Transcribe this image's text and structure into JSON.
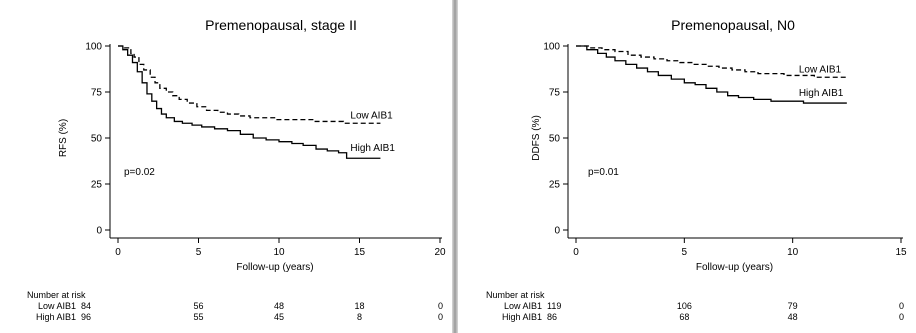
{
  "chart_data": [
    {
      "type": "line",
      "title": "Premenopausal, stage II",
      "xlabel": "Follow-up (years)",
      "ylabel": "RFS (%)",
      "xlim": [
        0,
        20
      ],
      "ylim": [
        0,
        100
      ],
      "xticks": [
        0,
        5,
        10,
        15,
        20
      ],
      "yticks": [
        0,
        25,
        50,
        75,
        100
      ],
      "annotation": "p=0.02",
      "series": [
        {
          "name": "Low AIB1",
          "style": "dashed",
          "x": [
            0,
            0.4,
            0.8,
            1.0,
            1.3,
            1.6,
            2.0,
            2.3,
            2.6,
            3.0,
            3.4,
            3.8,
            4.3,
            4.9,
            5.5,
            6.2,
            6.8,
            7.5,
            8.2,
            9.0,
            9.8,
            10.6,
            11.4,
            12.2,
            13.0,
            14.0,
            15.0,
            16.3
          ],
          "y": [
            100,
            99,
            96,
            94,
            90,
            87,
            83,
            80,
            77,
            75,
            73,
            71,
            69,
            67,
            65,
            64,
            63,
            62,
            61,
            61,
            60,
            60,
            60,
            59,
            59,
            58,
            58,
            58
          ]
        },
        {
          "name": "High AIB1",
          "style": "solid",
          "x": [
            0,
            0.3,
            0.6,
            0.9,
            1.2,
            1.5,
            1.8,
            2.1,
            2.4,
            2.7,
            3.0,
            3.5,
            4.0,
            4.6,
            5.2,
            6.0,
            6.8,
            7.6,
            8.4,
            9.2,
            10.0,
            10.8,
            11.5,
            12.3,
            13.0,
            13.7,
            14.2,
            15.0,
            16.3
          ],
          "y": [
            100,
            98,
            95,
            91,
            86,
            80,
            74,
            70,
            66,
            63,
            61,
            59,
            58,
            57,
            56,
            55,
            54,
            52,
            50,
            49,
            48,
            47,
            46,
            44,
            43,
            42,
            39,
            39,
            39
          ]
        }
      ],
      "risk_table": {
        "header": "Number at risk",
        "times": [
          0,
          5,
          10,
          15,
          20
        ],
        "rows": [
          {
            "label": "Low AIB1",
            "counts": [
              "84",
              "56",
              "48",
              "18",
              "0"
            ]
          },
          {
            "label": "High AIB1",
            "counts": [
              "96",
              "55",
              "45",
              "8",
              "0"
            ]
          }
        ]
      }
    },
    {
      "type": "line",
      "title": "Premenopausal, N0",
      "xlabel": "Follow-up (years)",
      "ylabel": "DDFS (%)",
      "xlim": [
        0,
        15
      ],
      "ylim": [
        0,
        100
      ],
      "xticks": [
        0,
        5,
        10,
        15
      ],
      "yticks": [
        0,
        25,
        50,
        75,
        100
      ],
      "annotation": "p=0.01",
      "series": [
        {
          "name": "Low AIB1",
          "style": "dashed",
          "x": [
            0,
            0.6,
            1.2,
            1.8,
            2.4,
            3.0,
            3.6,
            4.2,
            4.8,
            5.4,
            6.0,
            6.6,
            7.2,
            7.8,
            8.4,
            9.0,
            9.6,
            10.2,
            11.0,
            12.5
          ],
          "y": [
            100,
            99,
            98,
            97,
            95,
            94,
            93,
            92,
            91,
            90,
            89,
            88,
            87,
            86,
            85,
            85,
            84,
            84,
            83,
            83
          ]
        },
        {
          "name": "High AIB1",
          "style": "solid",
          "x": [
            0,
            0.5,
            1.0,
            1.4,
            1.8,
            2.3,
            2.8,
            3.3,
            3.8,
            4.4,
            5.0,
            5.5,
            6.0,
            6.5,
            7.0,
            7.5,
            8.2,
            9.0,
            9.8,
            10.5,
            11.3,
            12.5
          ],
          "y": [
            100,
            98,
            96,
            94,
            92,
            90,
            88,
            86,
            84,
            82,
            80,
            79,
            77,
            75,
            73,
            72,
            71,
            70,
            70,
            69,
            69,
            69
          ]
        }
      ],
      "risk_table": {
        "header": "Number at risk",
        "times": [
          0,
          5,
          10,
          15
        ],
        "rows": [
          {
            "label": "Low AIB1",
            "counts": [
              "119",
              "106",
              "79",
              "0"
            ]
          },
          {
            "label": "High AIB1",
            "counts": [
              "86",
              "68",
              "48",
              "0"
            ]
          }
        ]
      }
    }
  ]
}
